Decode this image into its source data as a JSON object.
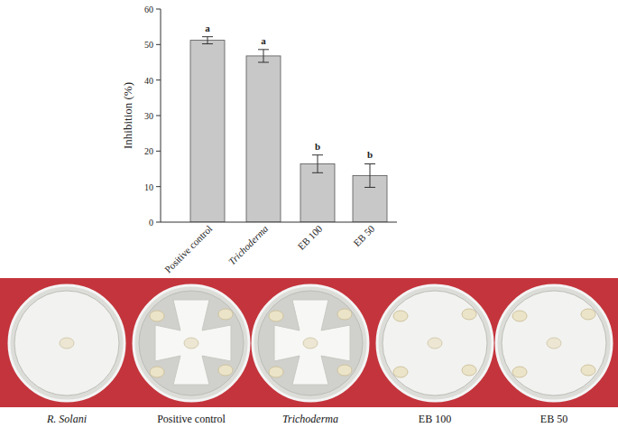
{
  "chart_data": {
    "type": "bar",
    "y_label": "Inhibition (%)",
    "categories": [
      "Positive control",
      "Trichoderma",
      "EB 100",
      "EB 50"
    ],
    "values": [
      51.2,
      46.8,
      16.4,
      13.1
    ],
    "errors": [
      1.0,
      1.8,
      2.5,
      3.3
    ],
    "annotations": [
      "a",
      "a",
      "b",
      "b"
    ],
    "color": "#c8c8c8",
    "ylim": [
      0,
      60
    ],
    "yticks": [
      0,
      10,
      20,
      30,
      40,
      50,
      60
    ],
    "grid": false
  },
  "panel": {
    "labels": [
      "R. Solani",
      "Positive control",
      "Trichoderma",
      "EB 100",
      "EB 50"
    ]
  }
}
